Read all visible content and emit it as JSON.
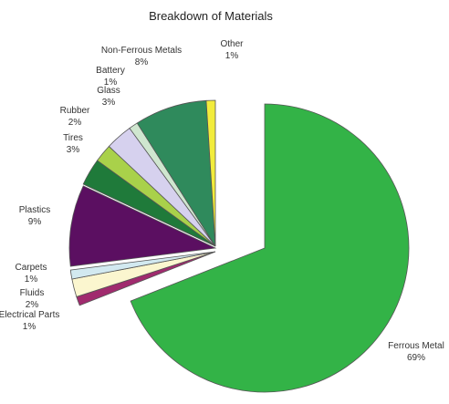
{
  "chart_data": {
    "type": "pie",
    "title": "Breakdown of Materials",
    "exploded": true,
    "slices": [
      {
        "label": "Ferrous Metal",
        "pct_label": "69%",
        "value": 69,
        "color": "#33b347"
      },
      {
        "label": "Electrical Parts",
        "pct_label": "1%",
        "value": 1,
        "color": "#a02b6e"
      },
      {
        "label": "Fluids",
        "pct_label": "2%",
        "value": 2,
        "color": "#fbf6cf"
      },
      {
        "label": "Carpets",
        "pct_label": "1%",
        "value": 1,
        "color": "#d2e9f0"
      },
      {
        "label": "Plastics",
        "pct_label": "9%",
        "value": 9,
        "color": "#5b0f61"
      },
      {
        "label": "Tires",
        "pct_label": "3%",
        "value": 3,
        "color": "#1f7a3a"
      },
      {
        "label": "Rubber",
        "pct_label": "2%",
        "value": 2,
        "color": "#a9d14a"
      },
      {
        "label": "Glass",
        "pct_label": "3%",
        "value": 3,
        "color": "#d6d1ee"
      },
      {
        "label": "Battery",
        "pct_label": "1%",
        "value": 1,
        "color": "#cfe6cf"
      },
      {
        "label": "Non-Ferrous Metals",
        "pct_label": "8%",
        "value": 8,
        "color": "#2f8a5c"
      },
      {
        "label": "Other",
        "pct_label": "1%",
        "value": 1,
        "color": "#f2ec3c"
      }
    ]
  }
}
